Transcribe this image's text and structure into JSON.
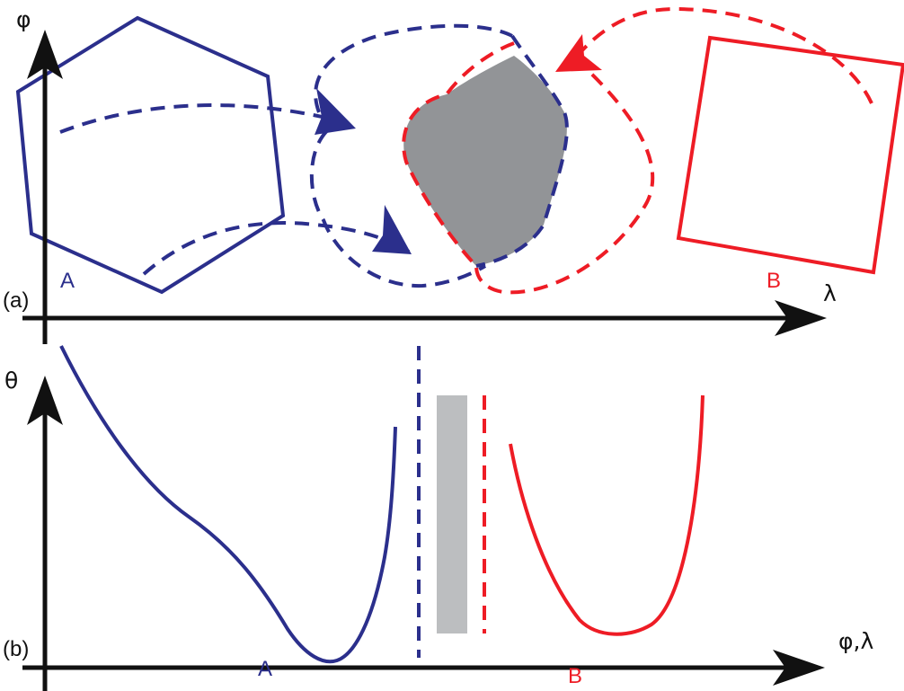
{
  "colors": {
    "blue": "#2b2f8c",
    "red": "#ee1c25",
    "gray_region": "#929497",
    "gray_bar": "#bcbec0",
    "axis": "#111111"
  },
  "panel_a": {
    "label": "(a)",
    "y_axis_label": "φ",
    "x_axis_label": "λ",
    "region_a_label": "A",
    "region_b_label": "B"
  },
  "panel_b": {
    "label": "(b)",
    "y_axis_label": "θ",
    "x_axis_label": "φ,λ",
    "curve_a_label": "A",
    "curve_b_label": "B"
  }
}
